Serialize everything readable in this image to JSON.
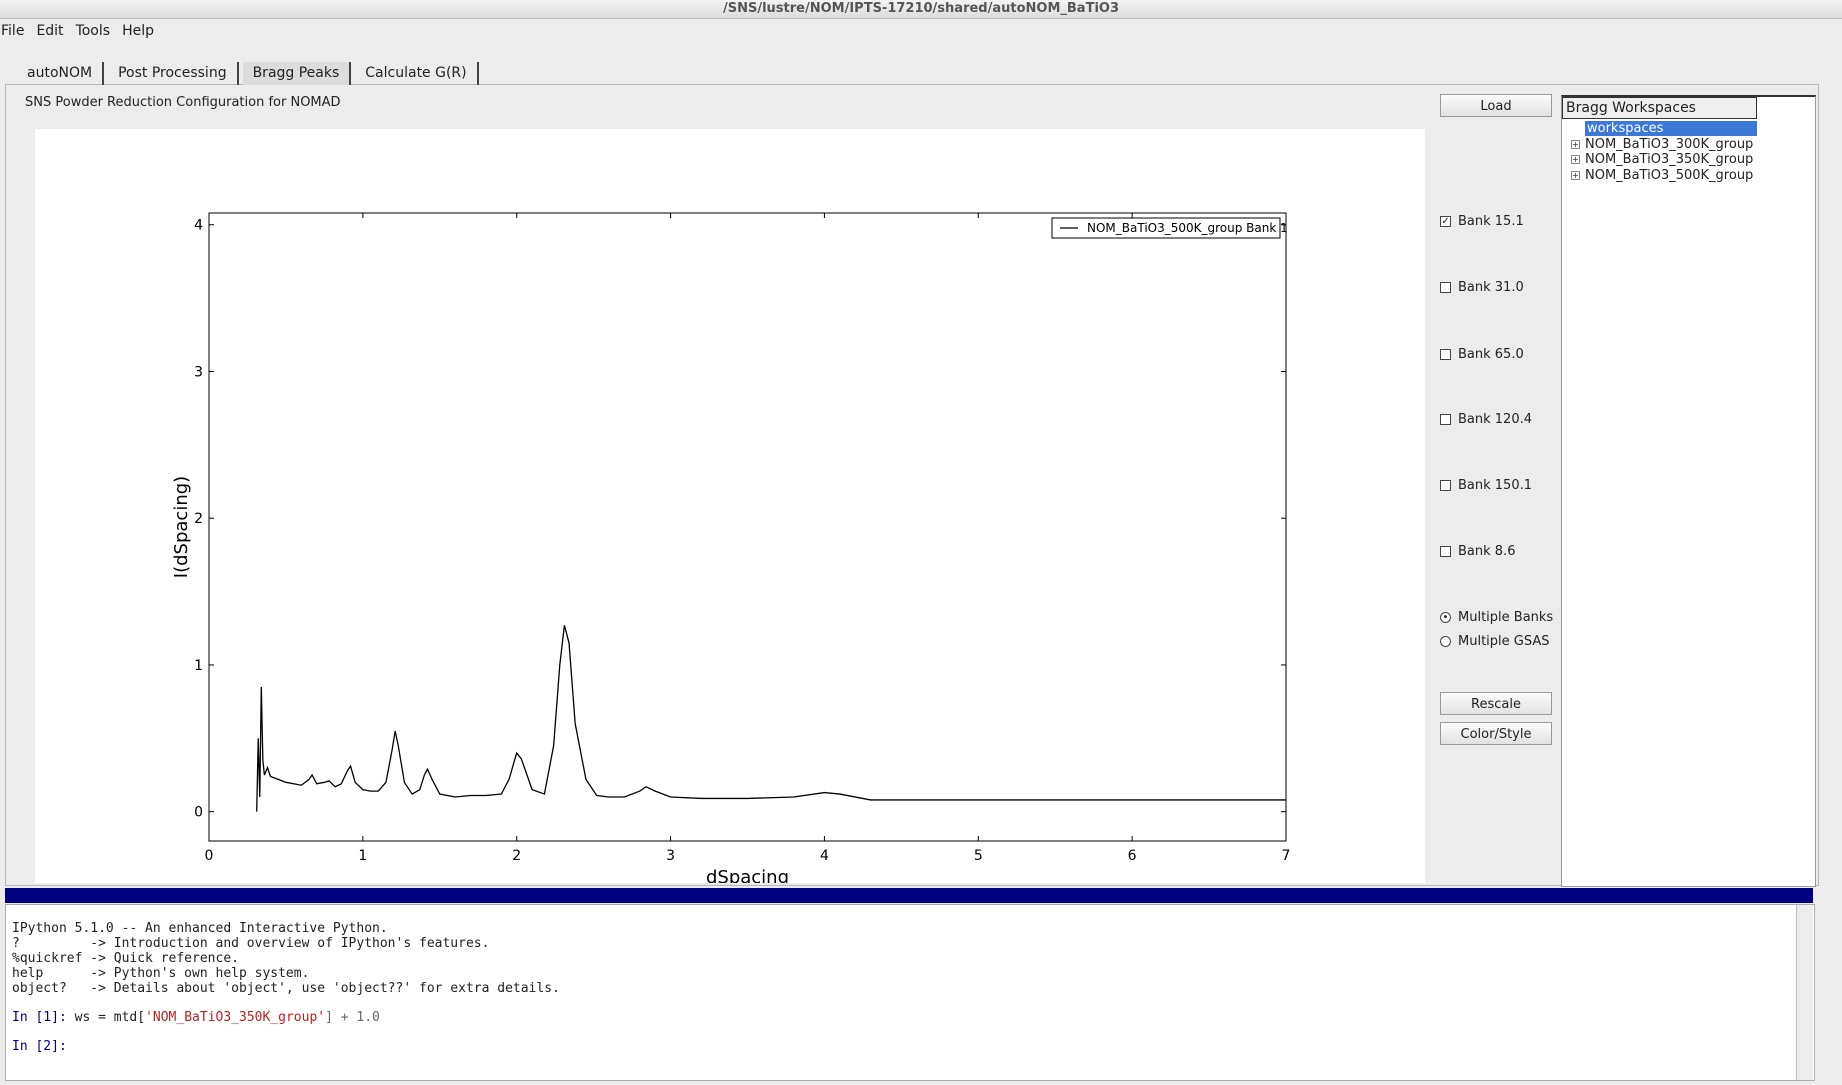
{
  "window": {
    "title": "/SNS/lustre/NOM/IPTS-17210/shared/autoNOM_BaTiO3"
  },
  "menu": [
    "File",
    "Edit",
    "Tools",
    "Help"
  ],
  "tabs": {
    "items": [
      "autoNOM",
      "Post Processing",
      "Bragg Peaks",
      "Calculate G(R)"
    ],
    "active": 2
  },
  "header": "SNS Powder Reduction Configuration for NOMAD",
  "buttons": {
    "load": "Load",
    "rescale": "Rescale",
    "color_style": "Color/Style"
  },
  "banks": [
    {
      "label": "Bank 15.1",
      "checked": true
    },
    {
      "label": "Bank 31.0",
      "checked": false
    },
    {
      "label": "Bank 65.0",
      "checked": false
    },
    {
      "label": "Bank 120.4",
      "checked": false
    },
    {
      "label": "Bank 150.1",
      "checked": false
    },
    {
      "label": "Bank 8.6",
      "checked": false
    }
  ],
  "modes": [
    {
      "label": "Multiple Banks",
      "selected": true
    },
    {
      "label": "Multiple GSAS",
      "selected": false
    }
  ],
  "workspace_tree": {
    "title": "Bragg Workspaces",
    "root": "workspaces",
    "items": [
      "NOM_BaTiO3_300K_group",
      "NOM_BaTiO3_350K_group",
      "NOM_BaTiO3_500K_group"
    ]
  },
  "console": {
    "banner": [
      "IPython 5.1.0 -- An enhanced Interactive Python.",
      "?         -> Introduction and overview of IPython's features.",
      "%quickref -> Quick reference.",
      "help      -> Python's own help system.",
      "object?   -> Details about 'object', use 'object??' for extra details."
    ],
    "inputs": [
      {
        "prompt": "In [1]:",
        "code": [
          {
            "text": "ws = mtd[",
            "style": "plain"
          },
          {
            "text": "'NOM_BaTiO3_350K_group'",
            "style": "string"
          },
          {
            "text": "] + 1.0",
            "style": "number"
          }
        ]
      },
      {
        "prompt": "In [2]:",
        "code": []
      }
    ]
  },
  "chart_data": {
    "type": "line",
    "xlabel": "dSpacing",
    "ylabel": "I(dSpacing)",
    "legend": "upper right",
    "x": [
      0.31,
      0.32,
      0.33,
      0.34,
      0.35,
      0.36,
      0.38,
      0.4,
      0.45,
      0.5,
      0.55,
      0.6,
      0.65,
      0.67,
      0.7,
      0.75,
      0.78,
      0.82,
      0.86,
      0.9,
      0.92,
      0.95,
      1,
      1.05,
      1.1,
      1.15,
      1.19,
      1.21,
      1.23,
      1.27,
      1.32,
      1.37,
      1.4,
      1.42,
      1.45,
      1.5,
      1.6,
      1.7,
      1.8,
      1.9,
      1.95,
      2,
      2.03,
      2.1,
      2.18,
      2.24,
      2.28,
      2.31,
      2.34,
      2.38,
      2.45,
      2.52,
      2.6,
      2.7,
      2.8,
      2.84,
      2.9,
      3,
      3.2,
      3.5,
      3.8,
      4,
      4.1,
      4.3,
      4.6,
      5,
      5.5,
      6,
      6.5,
      7
    ],
    "series": [
      {
        "name": "NOM_BaTiO3_500K_group Bank 1",
        "color": "#000000",
        "values": [
          0,
          0.5,
          0.1,
          0.85,
          0.35,
          0.25,
          0.3,
          0.24,
          0.22,
          0.2,
          0.19,
          0.18,
          0.22,
          0.25,
          0.19,
          0.2,
          0.21,
          0.17,
          0.19,
          0.28,
          0.31,
          0.2,
          0.15,
          0.14,
          0.14,
          0.2,
          0.42,
          0.55,
          0.45,
          0.2,
          0.12,
          0.15,
          0.25,
          0.29,
          0.22,
          0.12,
          0.1,
          0.11,
          0.11,
          0.12,
          0.22,
          0.4,
          0.36,
          0.15,
          0.12,
          0.45,
          1,
          1.27,
          1.15,
          0.6,
          0.22,
          0.11,
          0.1,
          0.1,
          0.14,
          0.17,
          0.14,
          0.1,
          0.09,
          0.09,
          0.1,
          0.13,
          0.12,
          0.08,
          0.08,
          0.08,
          0.08,
          0.08,
          0.08,
          0.08
        ]
      }
    ],
    "xlim": [
      0,
      7
    ],
    "ylim": [
      -0.2,
      4.08
    ],
    "xticks": [
      0,
      1,
      2,
      3,
      4,
      5,
      6,
      7
    ],
    "yticks": [
      0,
      1,
      2,
      3,
      4
    ]
  }
}
